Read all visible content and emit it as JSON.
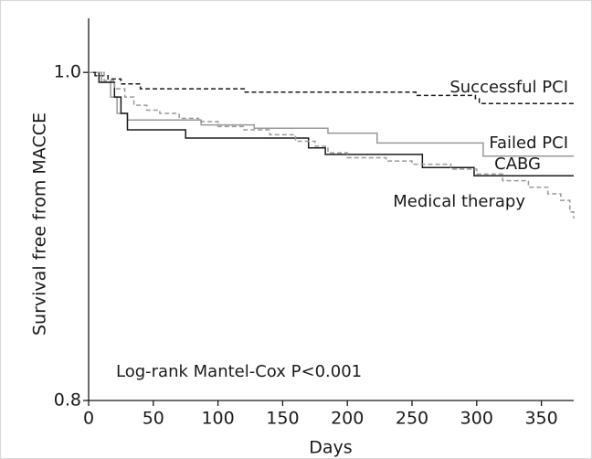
{
  "chart_data": {
    "type": "step",
    "xlabel": "Days",
    "ylabel": "Survival free from MACCE",
    "annotation": "Log-rank Mantel-Cox P<0.001",
    "xlim": [
      0,
      375
    ],
    "xticks": [
      0,
      50,
      100,
      150,
      200,
      250,
      300,
      350
    ],
    "ylim": [
      0.8,
      1.033
    ],
    "yticks": [
      {
        "value": 0.8,
        "label": "0.8"
      },
      {
        "value": 1,
        "label": "1.0"
      }
    ],
    "series": [
      {
        "name": "Successful PCI",
        "color": "#1a1a1a",
        "linestyle": "dashed",
        "x": [
          0,
          5,
          15,
          25,
          40,
          121,
          253,
          299,
          302,
          375
        ],
        "values": [
          1.0,
          0.998,
          0.996,
          0.993,
          0.99,
          0.988,
          0.986,
          0.984,
          0.981,
          0.981
        ]
      },
      {
        "name": "Failed PCI",
        "color": "#999999",
        "linestyle": "solid",
        "x": [
          0,
          10,
          17,
          22,
          30,
          87,
          128,
          185,
          223,
          305,
          375
        ],
        "values": [
          1.0,
          0.994,
          0.985,
          0.975,
          0.971,
          0.968,
          0.966,
          0.963,
          0.957,
          0.949,
          0.949
        ]
      },
      {
        "name": "CABG",
        "color": "#1a1a1a",
        "linestyle": "solid",
        "x": [
          0,
          8,
          20,
          25,
          30,
          75,
          170,
          183,
          258,
          298,
          375
        ],
        "values": [
          1.0,
          0.994,
          0.985,
          0.975,
          0.965,
          0.96,
          0.954,
          0.95,
          0.942,
          0.937,
          0.937
        ]
      },
      {
        "name": "Medical therapy",
        "color": "#999999",
        "linestyle": "dashed",
        "x": [
          0,
          12,
          20,
          28,
          35,
          45,
          55,
          70,
          85,
          100,
          120,
          140,
          160,
          175,
          185,
          200,
          230,
          250,
          280,
          300,
          320,
          340,
          355,
          365,
          372,
          375
        ],
        "values": [
          1.0,
          0.995,
          0.99,
          0.985,
          0.98,
          0.977,
          0.975,
          0.972,
          0.97,
          0.967,
          0.965,
          0.962,
          0.958,
          0.955,
          0.951,
          0.948,
          0.946,
          0.944,
          0.941,
          0.938,
          0.934,
          0.93,
          0.926,
          0.922,
          0.915,
          0.911
        ]
      }
    ]
  }
}
